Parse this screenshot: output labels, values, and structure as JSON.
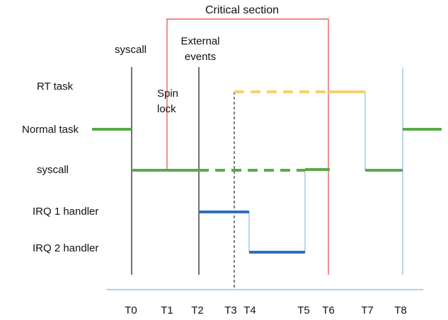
{
  "title": "Critical section",
  "annotations": {
    "syscall_top": "syscall",
    "external_events_line1": "External",
    "external_events_line2": "events",
    "spin_lock_line1": "Spin",
    "spin_lock_line2": "lock"
  },
  "rows": [
    {
      "id": "rt-task",
      "label": "RT task"
    },
    {
      "id": "normal-task",
      "label": "Normal task"
    },
    {
      "id": "syscall",
      "label": "syscall"
    },
    {
      "id": "irq1",
      "label": "IRQ 1 handler"
    },
    {
      "id": "irq2",
      "label": "IRQ 2 handler"
    }
  ],
  "ticks": [
    "T0",
    "T1",
    "T2",
    "T3",
    "T4",
    "T5",
    "T6",
    "T7",
    "T8"
  ],
  "colors": {
    "green": "#5aa84a",
    "blue": "#2f6db8",
    "yellow": "#f3d36b",
    "red": "#e8453c",
    "light_blue": "#9cc3e6",
    "black": "#111111"
  }
}
